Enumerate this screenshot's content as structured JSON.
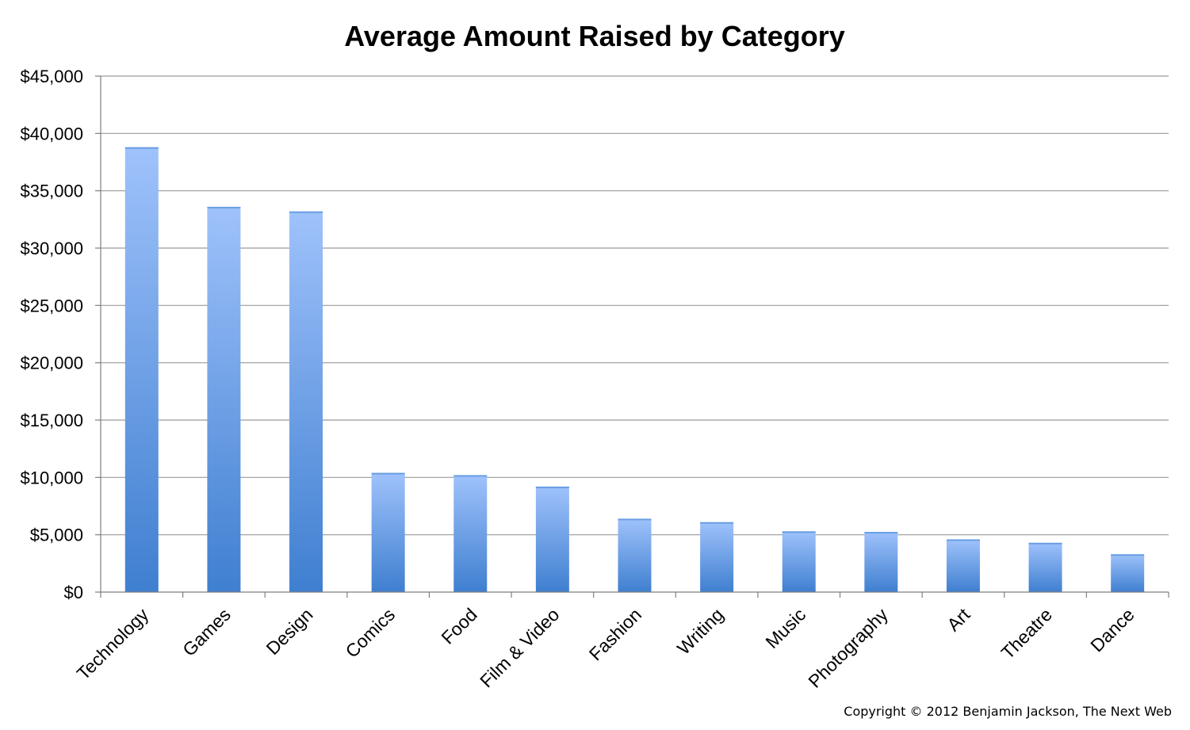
{
  "chart_data": {
    "type": "bar",
    "title": "Average Amount Raised by Category",
    "categories": [
      "Technology",
      "Games",
      "Design",
      "Comics",
      "Food",
      "Film & Video",
      "Fashion",
      "Writing",
      "Music",
      "Photography",
      "Art",
      "Theatre",
      "Dance"
    ],
    "values": [
      38800,
      33600,
      33200,
      10400,
      10200,
      9200,
      6400,
      6100,
      5300,
      5250,
      4600,
      4300,
      3300
    ],
    "ylim": [
      0,
      45000
    ],
    "yticks": [
      0,
      5000,
      10000,
      15000,
      20000,
      25000,
      30000,
      35000,
      40000,
      45000
    ],
    "ytick_labels": [
      "$0",
      "$5,000",
      "$10,000",
      "$15,000",
      "$20,000",
      "$25,000",
      "$30,000",
      "$35,000",
      "$40,000",
      "$45,000"
    ],
    "xlabel": "",
    "ylabel": "",
    "grid": true,
    "legend": "none",
    "colors": {
      "bar_top": "#9fc2fb",
      "bar_bottom": "#3f7fd0",
      "gridline": "#9a9a9a",
      "axis": "#7f7f7f"
    }
  },
  "footer": {
    "copyright": "Copyright © 2012 Benjamin Jackson, The Next Web"
  }
}
